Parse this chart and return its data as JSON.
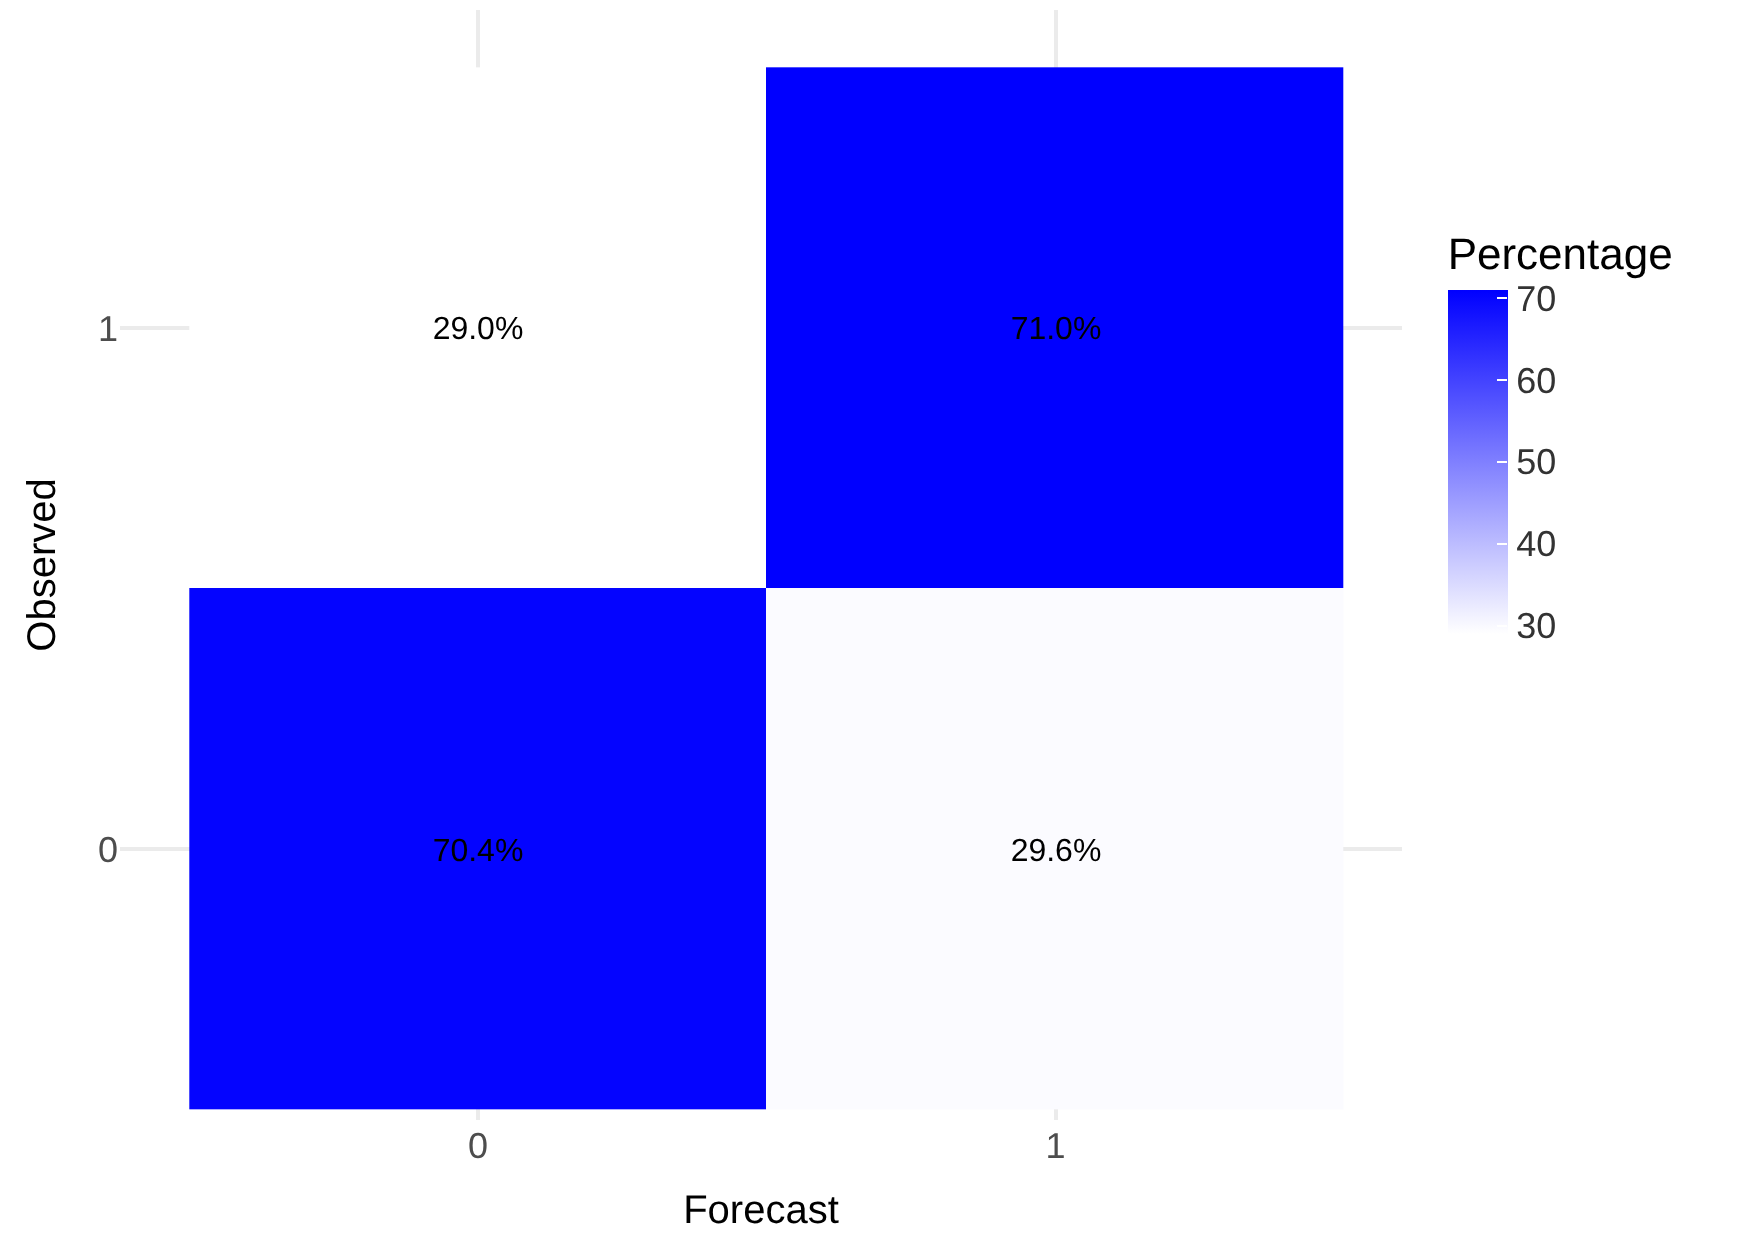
{
  "chart_data": {
    "type": "heatmap",
    "xlabel": "Forecast",
    "ylabel": "Observed",
    "legend_title": "Percentage",
    "categories": [
      "0",
      "1"
    ],
    "y_categories": [
      "1",
      "0"
    ],
    "cells": [
      [
        29.0,
        71.0
      ],
      [
        70.4,
        29.6
      ]
    ],
    "cell_labels": [
      [
        "29.0%",
        "71.0%"
      ],
      [
        "70.4%",
        "29.6%"
      ]
    ],
    "colors": [
      "#ffffff",
      "#0000ff"
    ],
    "clim": [
      29.0,
      71.0
    ],
    "cticks": [
      30,
      40,
      50,
      60,
      70
    ],
    "grid": true
  }
}
